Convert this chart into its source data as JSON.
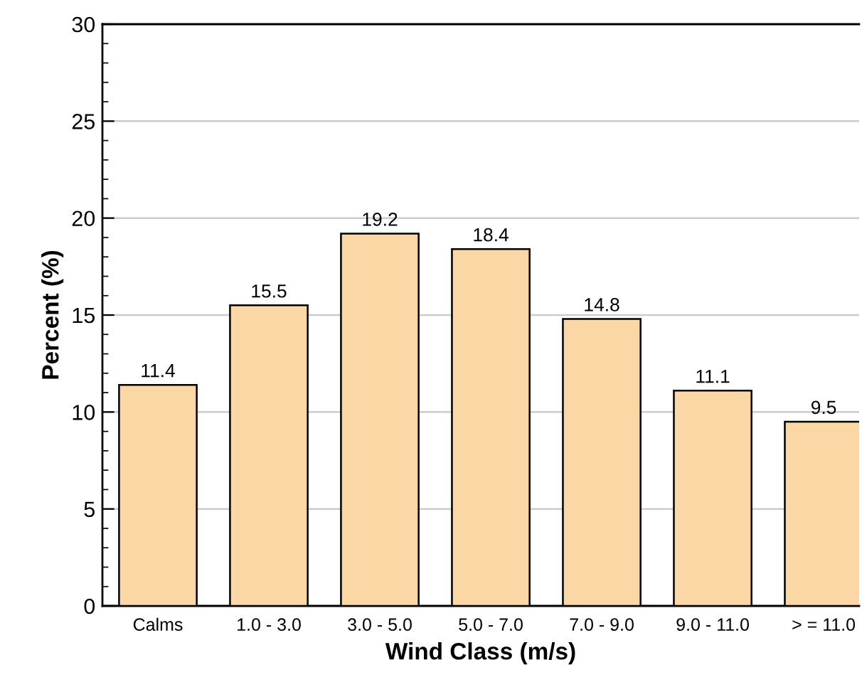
{
  "chart_data": {
    "type": "bar",
    "xlabel": "Wind Class (m/s)",
    "ylabel": "Percent (%)",
    "categories": [
      "Calms",
      "1.0 - 3.0",
      "3.0 - 5.0",
      "5.0 - 7.0",
      "7.0 - 9.0",
      "9.0 - 11.0",
      "> = 11.0"
    ],
    "values": [
      11.4,
      15.5,
      19.2,
      18.4,
      14.8,
      11.1,
      9.5
    ],
    "color": "#fcd7a6",
    "ylim": [
      0,
      30
    ],
    "yticks": [
      0,
      {
        "value": 1,
        "label": null
      },
      {
        "value": 2,
        "label": null
      },
      {
        "value": 3,
        "label": null
      },
      {
        "value": 4,
        "label": null
      },
      5,
      {
        "value": 6,
        "label": null
      },
      {
        "value": 7,
        "label": null
      },
      {
        "value": 8,
        "label": null
      },
      {
        "value": 9,
        "label": null
      },
      10,
      {
        "value": 11,
        "label": null
      },
      {
        "value": 12,
        "label": null
      },
      {
        "value": 13,
        "label": null
      },
      {
        "value": 14,
        "label": null
      },
      15,
      {
        "value": 16,
        "label": null
      },
      {
        "value": 17,
        "label": null
      },
      {
        "value": 18,
        "label": null
      },
      {
        "value": 19,
        "label": null
      },
      20,
      {
        "value": 21,
        "label": null
      },
      {
        "value": 22,
        "label": null
      },
      {
        "value": 23,
        "label": null
      },
      {
        "value": 24,
        "label": null
      },
      25,
      {
        "value": 26,
        "label": null
      },
      {
        "value": 27,
        "label": null
      },
      {
        "value": 28,
        "label": null
      },
      {
        "value": 29,
        "label": null
      },
      30
    ],
    "grid": "y",
    "data_labels": true
  }
}
